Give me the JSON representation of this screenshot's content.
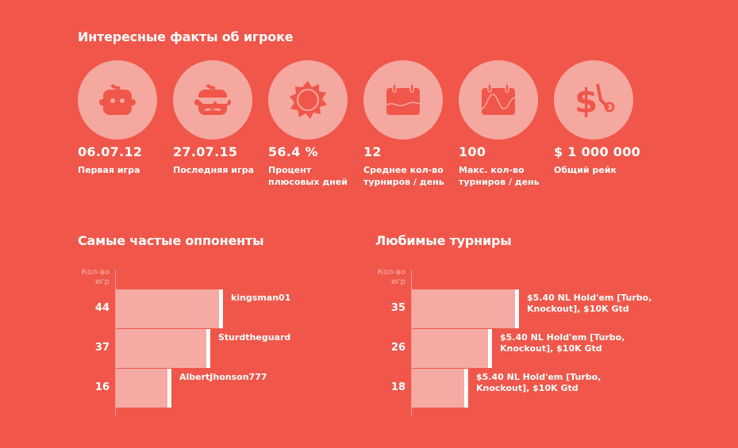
{
  "facts_title": "Интересные факты об игроке",
  "facts": [
    {
      "icon": "baby-face-icon",
      "value": "06.07.12",
      "label": "Первая игра"
    },
    {
      "icon": "mustache-face-icon",
      "value": "27.07.15",
      "label": "Последняя игра"
    },
    {
      "icon": "sun-icon",
      "value": "56.4 %",
      "label": "Процент плюсовых дней"
    },
    {
      "icon": "calendar-wave-icon",
      "value": "12",
      "label": "Среднее кол-во турниров / день"
    },
    {
      "icon": "calendar-big-wave-icon",
      "value": "100",
      "label": "Макс. кол-во турниров / день"
    },
    {
      "icon": "dollar-scissors-icon",
      "value": "$ 1 000 000",
      "label": "Общий рейк"
    }
  ],
  "colors": {
    "background": "#f0574a",
    "circle": "#f5a8a0",
    "bar": "#f5aaa3"
  },
  "chart_data": [
    {
      "type": "bar",
      "title": "Самые частые оппоненты",
      "ylabel": "Кол-во игр",
      "categories": [
        "kingsman01",
        "Sturdtheguard",
        "AlbertJhonson777"
      ],
      "values": [
        44,
        37,
        16
      ],
      "value_labels": [
        "44",
        "37",
        "16"
      ]
    },
    {
      "type": "bar",
      "title": "Любимые турниры",
      "ylabel": "Кол-во игр",
      "categories": [
        "$5.40 NL Hold'em [Turbo, Knockout], $10K Gtd",
        "$5.40 NL Hold'em [Turbo, Knockout], $10K Gtd",
        "$5.40 NL Hold'em [Turbo, Knockout], $10K Gtd"
      ],
      "values": [
        35,
        26,
        18
      ],
      "value_labels": [
        "35",
        "26",
        "18"
      ]
    }
  ]
}
